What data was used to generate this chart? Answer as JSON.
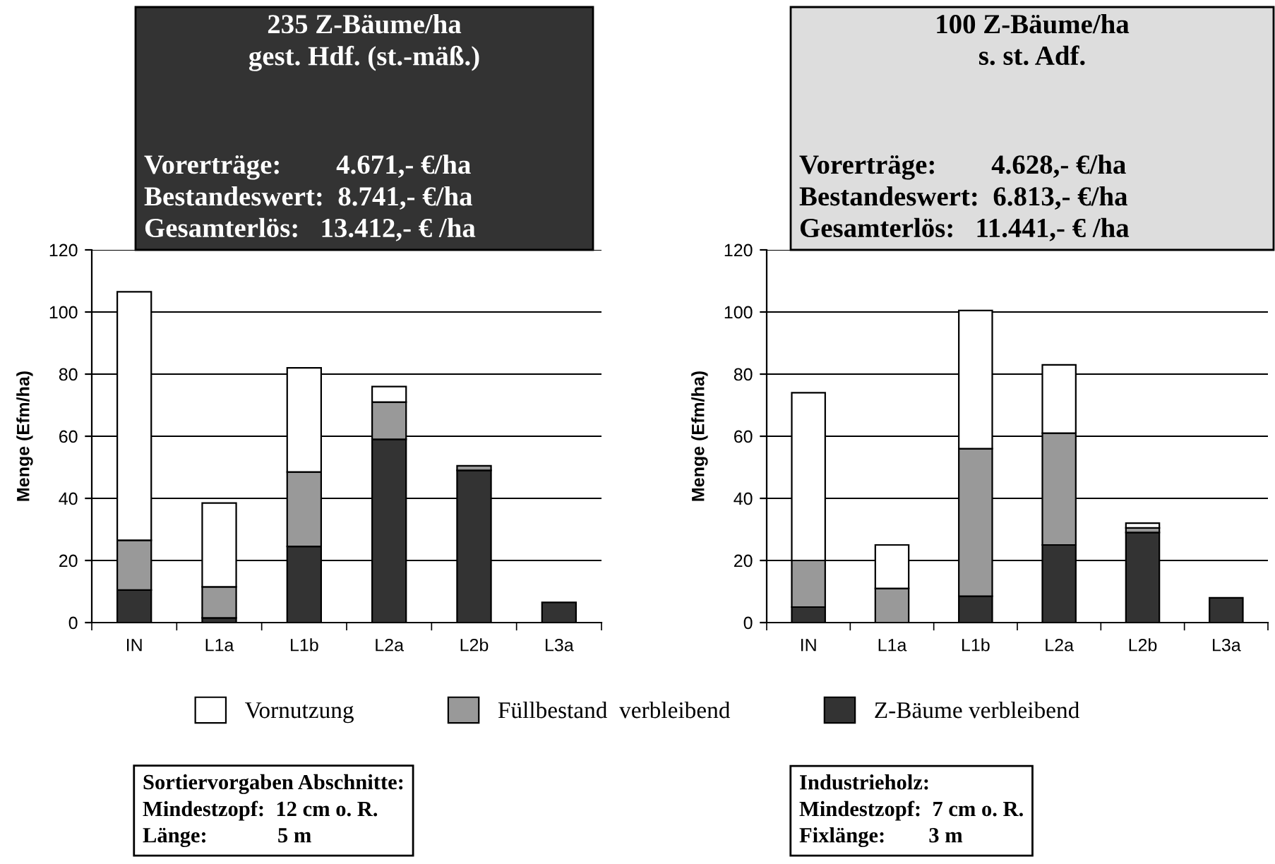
{
  "chart_data": [
    {
      "type": "bar",
      "stacked": true,
      "title": "235 Z-Bäume/ha\ngest. Hdf. (st.-mäß.)",
      "subtitle": "Vorerträge:        4.671,- €/ha\nBestandeswert:  8.741,- €/ha\nGesamterlös:   13.412,- € /ha",
      "ylabel": "Menge (Efm/ha)",
      "categories": [
        "IN",
        "L1a",
        "L1b",
        "L2a",
        "L2b",
        "L3a"
      ],
      "ylim": [
        0,
        120
      ],
      "yticks": [
        0,
        20,
        40,
        60,
        80,
        100,
        120
      ],
      "grid": "y",
      "legend": "bottom",
      "series": [
        {
          "name": "Z-Bäume verbleibend",
          "color": "#333333",
          "values": [
            10.5,
            1.5,
            24.5,
            59,
            49,
            6.5
          ]
        },
        {
          "name": "Füllbestand  verbleibend",
          "color": "#999999",
          "values": [
            16,
            10,
            24,
            12,
            1.5,
            null
          ]
        },
        {
          "name": "Vornutzung",
          "color": "#ffffff",
          "values": [
            80,
            27,
            33.5,
            5,
            null,
            null
          ]
        }
      ],
      "annotations": [
        "Sortiervorgaben Abschnitte:\nMindestzopf:  12 cm o. R.\nLänge:             5 m"
      ]
    },
    {
      "type": "bar",
      "stacked": true,
      "title": "100 Z-Bäume/ha\ns. st. Adf.",
      "subtitle": "Vorerträge:        4.628,- €/ha\nBestandeswert:  6.813,- €/ha\nGesamterlös:   11.441,- € /ha",
      "ylabel": "Menge (Efm/ha)",
      "categories": [
        "IN",
        "L1a",
        "L1b",
        "L2a",
        "L2b",
        "L3a"
      ],
      "ylim": [
        0,
        120
      ],
      "yticks": [
        0,
        20,
        40,
        60,
        80,
        100,
        120
      ],
      "grid": "y",
      "series": [
        {
          "color": "#333333",
          "values": [
            5,
            null,
            8.5,
            25,
            29,
            8
          ]
        },
        {
          "color": "#999999",
          "values": [
            15,
            11,
            47.5,
            36,
            1.5,
            null
          ]
        },
        {
          "color": "#ffffff",
          "values": [
            54,
            14,
            44.5,
            22,
            1.5,
            null
          ]
        }
      ],
      "annotations": [
        "Industrieholz:\nMindestzopf:  7 cm o. R.\nFixlänge:        3 m"
      ]
    }
  ]
}
